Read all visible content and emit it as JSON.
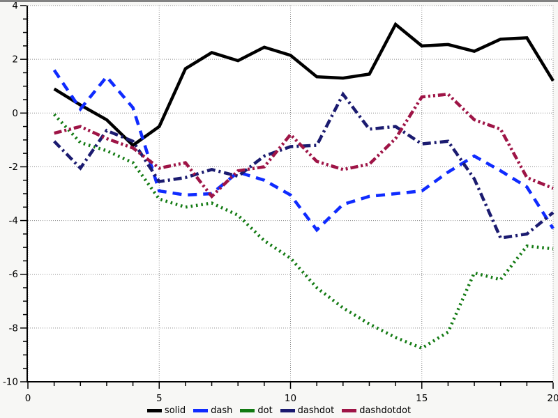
{
  "window": {
    "top_border_color": "#828282",
    "background": "#f7f7f5",
    "plot_background": "#ffffff"
  },
  "axis_style": {
    "axis_color": "#000000",
    "grid_color": "#8a8a8a",
    "tick_label_color": "#000000"
  },
  "chart_data": {
    "type": "line",
    "title": "",
    "xlabel": "",
    "ylabel": "",
    "xlim": [
      0,
      20
    ],
    "ylim": [
      -10,
      4
    ],
    "x_major_ticks": [
      0,
      5,
      10,
      15,
      20
    ],
    "x_minor_step": 1,
    "y_major_ticks": [
      4,
      2,
      0,
      -2,
      -4,
      -6,
      -8,
      -10
    ],
    "y_minor_step": 0.5,
    "grid": true,
    "grid_style": "dotted",
    "legend_position": "bottom-center",
    "x": [
      1,
      2,
      3,
      4,
      5,
      6,
      7,
      8,
      9,
      10,
      11,
      12,
      13,
      14,
      15,
      16,
      17,
      18,
      19,
      20
    ],
    "series": [
      {
        "name": "solid",
        "color": "#000000",
        "dash": "solid",
        "values": [
          0.9,
          0.3,
          -0.25,
          -1.2,
          -0.5,
          1.65,
          2.25,
          1.95,
          2.45,
          2.15,
          1.35,
          1.3,
          1.45,
          3.3,
          2.5,
          2.55,
          2.3,
          2.75,
          2.8,
          1.2
        ]
      },
      {
        "name": "dash",
        "color": "#0f2bff",
        "dash": "dash",
        "values": [
          1.6,
          0.15,
          1.35,
          0.2,
          -2.9,
          -3.05,
          -3.0,
          -2.2,
          -2.5,
          -3.05,
          -4.35,
          -3.4,
          -3.1,
          -3.0,
          -2.9,
          -2.2,
          -1.6,
          -2.15,
          -2.75,
          -4.3
        ]
      },
      {
        "name": "dot",
        "color": "#127a12",
        "dash": "dot",
        "values": [
          -0.05,
          -1.1,
          -1.4,
          -1.85,
          -3.2,
          -3.5,
          -3.35,
          -3.8,
          -4.75,
          -5.4,
          -6.5,
          -7.25,
          -7.85,
          -8.35,
          -8.75,
          -8.15,
          -5.95,
          -6.2,
          -4.95,
          -5.05
        ]
      },
      {
        "name": "dashdot",
        "color": "#1b1b70",
        "dash": "dashdot",
        "values": [
          -1.05,
          -2.05,
          -0.65,
          -1.05,
          -2.55,
          -2.4,
          -2.1,
          -2.35,
          -1.6,
          -1.25,
          -1.2,
          0.7,
          -0.6,
          -0.5,
          -1.15,
          -1.05,
          -2.45,
          -4.65,
          -4.5,
          -3.7
        ]
      },
      {
        "name": "dashdotdot",
        "color": "#9e1446",
        "dash": "dashdotdot",
        "values": [
          -0.75,
          -0.5,
          -0.95,
          -1.3,
          -2.05,
          -1.85,
          -3.1,
          -2.15,
          -2.0,
          -0.8,
          -1.8,
          -2.1,
          -1.9,
          -0.95,
          0.6,
          0.7,
          -0.25,
          -0.6,
          -2.4,
          -2.8
        ]
      }
    ]
  }
}
